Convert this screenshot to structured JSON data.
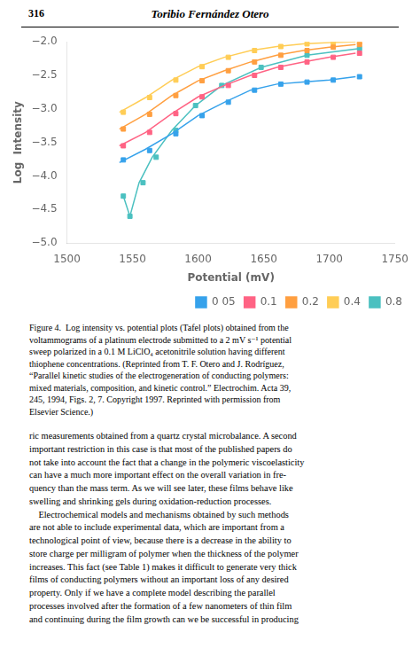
{
  "chart_data": {
    "type": "line",
    "xlabel": "Potential (mV)",
    "ylabel": "Log  Intensity",
    "xlim": [
      1500,
      1750
    ],
    "xticks": [
      1500,
      1550,
      1600,
      1650,
      1700,
      1750
    ],
    "ylim": [
      -5.0,
      -2.0
    ],
    "yticks": [
      {
        "value": -5.0,
        "label": "−5.0"
      },
      {
        "value": -4.5,
        "label": "−4.5"
      },
      {
        "value": -4.0,
        "label": "−4.0"
      },
      {
        "value": -3.5,
        "label": "−3.5"
      },
      {
        "value": -3.0,
        "label": "−3.0"
      },
      {
        "value": -2.5,
        "label": "−2.5"
      },
      {
        "value": -2.0,
        "label": "−2.0"
      }
    ],
    "grid": false,
    "legend": "lower right",
    "series": [
      {
        "name": "0 05",
        "color": "#36a2eb",
        "marker": "square",
        "line_style": "solid",
        "x": [
          1540,
          1560,
          1580,
          1600,
          1620,
          1640,
          1660,
          1680,
          1700,
          1720
        ],
        "values": [
          -3.8,
          -3.6,
          -3.37,
          -3.1,
          -2.9,
          -2.72,
          -2.63,
          -2.6,
          -2.57,
          -2.52
        ],
        "points": {
          "x": [
            1543,
            1563,
            1583,
            1603,
            1623,
            1643,
            1663,
            1683,
            1703,
            1723
          ],
          "values": [
            -3.76,
            -3.62,
            -3.37,
            -3.1,
            -2.9,
            -2.72,
            -2.63,
            -2.6,
            -2.57,
            -2.52
          ]
        }
      },
      {
        "name": "0.1",
        "color": "#ff6384",
        "marker": "square",
        "line_style": "solid",
        "x": [
          1540,
          1560,
          1580,
          1600,
          1620,
          1640,
          1660,
          1680,
          1700,
          1720
        ],
        "values": [
          -3.55,
          -3.35,
          -3.07,
          -2.82,
          -2.65,
          -2.5,
          -2.38,
          -2.3,
          -2.23,
          -2.17
        ],
        "points": {
          "x": [
            1543,
            1563,
            1583,
            1603,
            1623,
            1643,
            1663,
            1683,
            1703,
            1723
          ],
          "values": [
            -3.55,
            -3.35,
            -3.07,
            -2.82,
            -2.65,
            -2.5,
            -2.38,
            -2.3,
            -2.23,
            -2.17
          ]
        }
      },
      {
        "name": "0.2",
        "color": "#ff9f40",
        "marker": "square",
        "line_style": "solid",
        "x": [
          1540,
          1560,
          1580,
          1600,
          1620,
          1640,
          1660,
          1680,
          1700,
          1720
        ],
        "values": [
          -3.3,
          -3.08,
          -2.8,
          -2.58,
          -2.43,
          -2.3,
          -2.2,
          -2.13,
          -2.08,
          -2.04
        ],
        "points": {
          "x": [
            1543,
            1563,
            1583,
            1603,
            1623,
            1643,
            1663,
            1683,
            1703,
            1723
          ],
          "values": [
            -3.3,
            -3.08,
            -2.8,
            -2.58,
            -2.43,
            -2.3,
            -2.2,
            -2.13,
            -2.08,
            -2.04
          ]
        }
      },
      {
        "name": "0.4",
        "color": "#ffcd56",
        "marker": "square",
        "line_style": "solid",
        "x": [
          1540,
          1560,
          1580,
          1600,
          1620,
          1640,
          1660,
          1680,
          1700,
          1720
        ],
        "values": [
          -3.05,
          -2.83,
          -2.57,
          -2.37,
          -2.23,
          -2.13,
          -2.07,
          -2.03,
          -2.01,
          -2.0
        ],
        "points": {
          "x": [
            1543,
            1563,
            1583,
            1603,
            1623,
            1643,
            1663,
            1683,
            1703,
            1723
          ],
          "values": [
            -3.05,
            -2.83,
            -2.57,
            -2.37,
            -2.23,
            -2.13,
            -2.07,
            -2.03,
            -2.01,
            -2.0
          ]
        }
      },
      {
        "name": "0.8",
        "color": "#4bc0c0",
        "marker": "square",
        "line_style": "solid",
        "x": [
          1543,
          1548,
          1555,
          1565,
          1580,
          1598,
          1618,
          1648,
          1683,
          1723
        ],
        "values": [
          -4.3,
          -4.6,
          -4.1,
          -3.72,
          -3.32,
          -2.95,
          -2.65,
          -2.38,
          -2.2,
          -2.1
        ],
        "points": {
          "x": [
            1543,
            1548,
            1558,
            1568,
            1583,
            1598,
            1618,
            1648,
            1683,
            1723
          ],
          "values": [
            -4.3,
            -4.6,
            -4.1,
            -3.72,
            -3.32,
            -2.95,
            -2.65,
            -2.38,
            -2.2,
            -2.1
          ]
        }
      }
    ],
    "annotations": [
      "316",
      "Toribio Fernández Otero",
      "Figure 4.  Log intensity vs. potential plots (Tafel plots) obtained from the\nvoltammograms of a platinum electrode submitted to a 2 mV s⁻¹ potential\nsweep polarized in a 0.1 M LiClO₄ acetonitrile solution having different\nthiophene concentrations. (Reprinted from T. F. Otero and J. Rodríguez,\n“Parallel kinetic studies of the electrogeneration of conducting polymers:\nmixed materials, composition, and kinetic control.” Electrochim. Acta 39,\n245, 1994, Figs. 2, 7. Copyright 1997. Reprinted with permission from\nElsevier Science.)",
      "ric measurements obtained from a quartz crystal microbalance. A second\nimportant restriction in this case is that most of the published papers do\nnot take into account the fact that a change in the polymeric viscoelasticity\ncan have a much more important effect on the overall variation in fre-\nquency than the mass term. As we will see later, these films behave like\nswelling and shrinking gels during oxidation-reduction processes.\n    Electrochemical models and mechanisms obtained by such methods\nare not able to include experimental data, which are important from a\ntechnological point of view, because there is a decrease in the ability to\nstore charge per milligram of polymer when the thickness of the polymer\nincreases. This fact (see Table 1) makes it difficult to generate very thick\nfilms of conducting polymers without an important loss of any desired\nproperty. Only if we have a complete model describing the parallel\nprocesses involved after the formation of a few nanometers of thin film\nand continuing during the film growth can we be successful in producing"
    ]
  }
}
